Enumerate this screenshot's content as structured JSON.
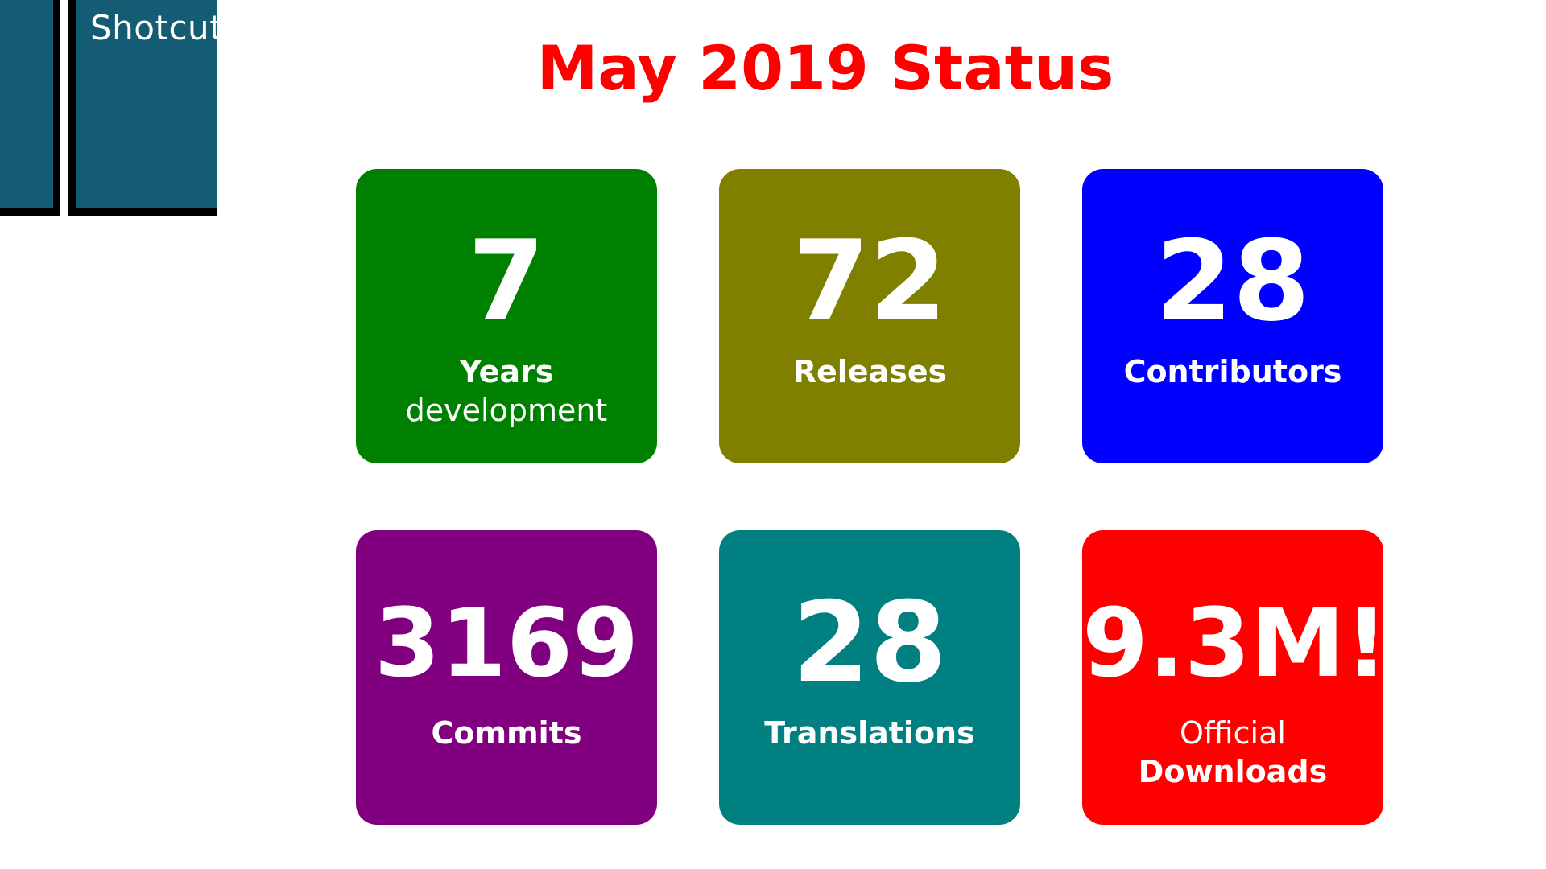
{
  "logo": {
    "text": "Shotcut"
  },
  "title": "May 2019 Status",
  "tiles": [
    {
      "value": "7",
      "label_primary": "Years",
      "label_secondary": "development",
      "color": "#008000"
    },
    {
      "value": "72",
      "label_primary": "Releases",
      "label_secondary": "",
      "color": "#808000"
    },
    {
      "value": "28",
      "label_primary": "Contributors",
      "label_secondary": "",
      "color": "#0000ff"
    },
    {
      "value": "3169",
      "label_primary": "Commits",
      "label_secondary": "",
      "color": "#800080"
    },
    {
      "value": "28",
      "label_primary": "Translations",
      "label_secondary": "",
      "color": "#008080"
    },
    {
      "value": "9.3M!",
      "label_light_top": "Official",
      "label_primary": "Downloads",
      "color": "#ff0000"
    }
  ],
  "colors": {
    "title": "#ff0000",
    "logo_bg": "#135c73",
    "logo_border": "#000000"
  }
}
